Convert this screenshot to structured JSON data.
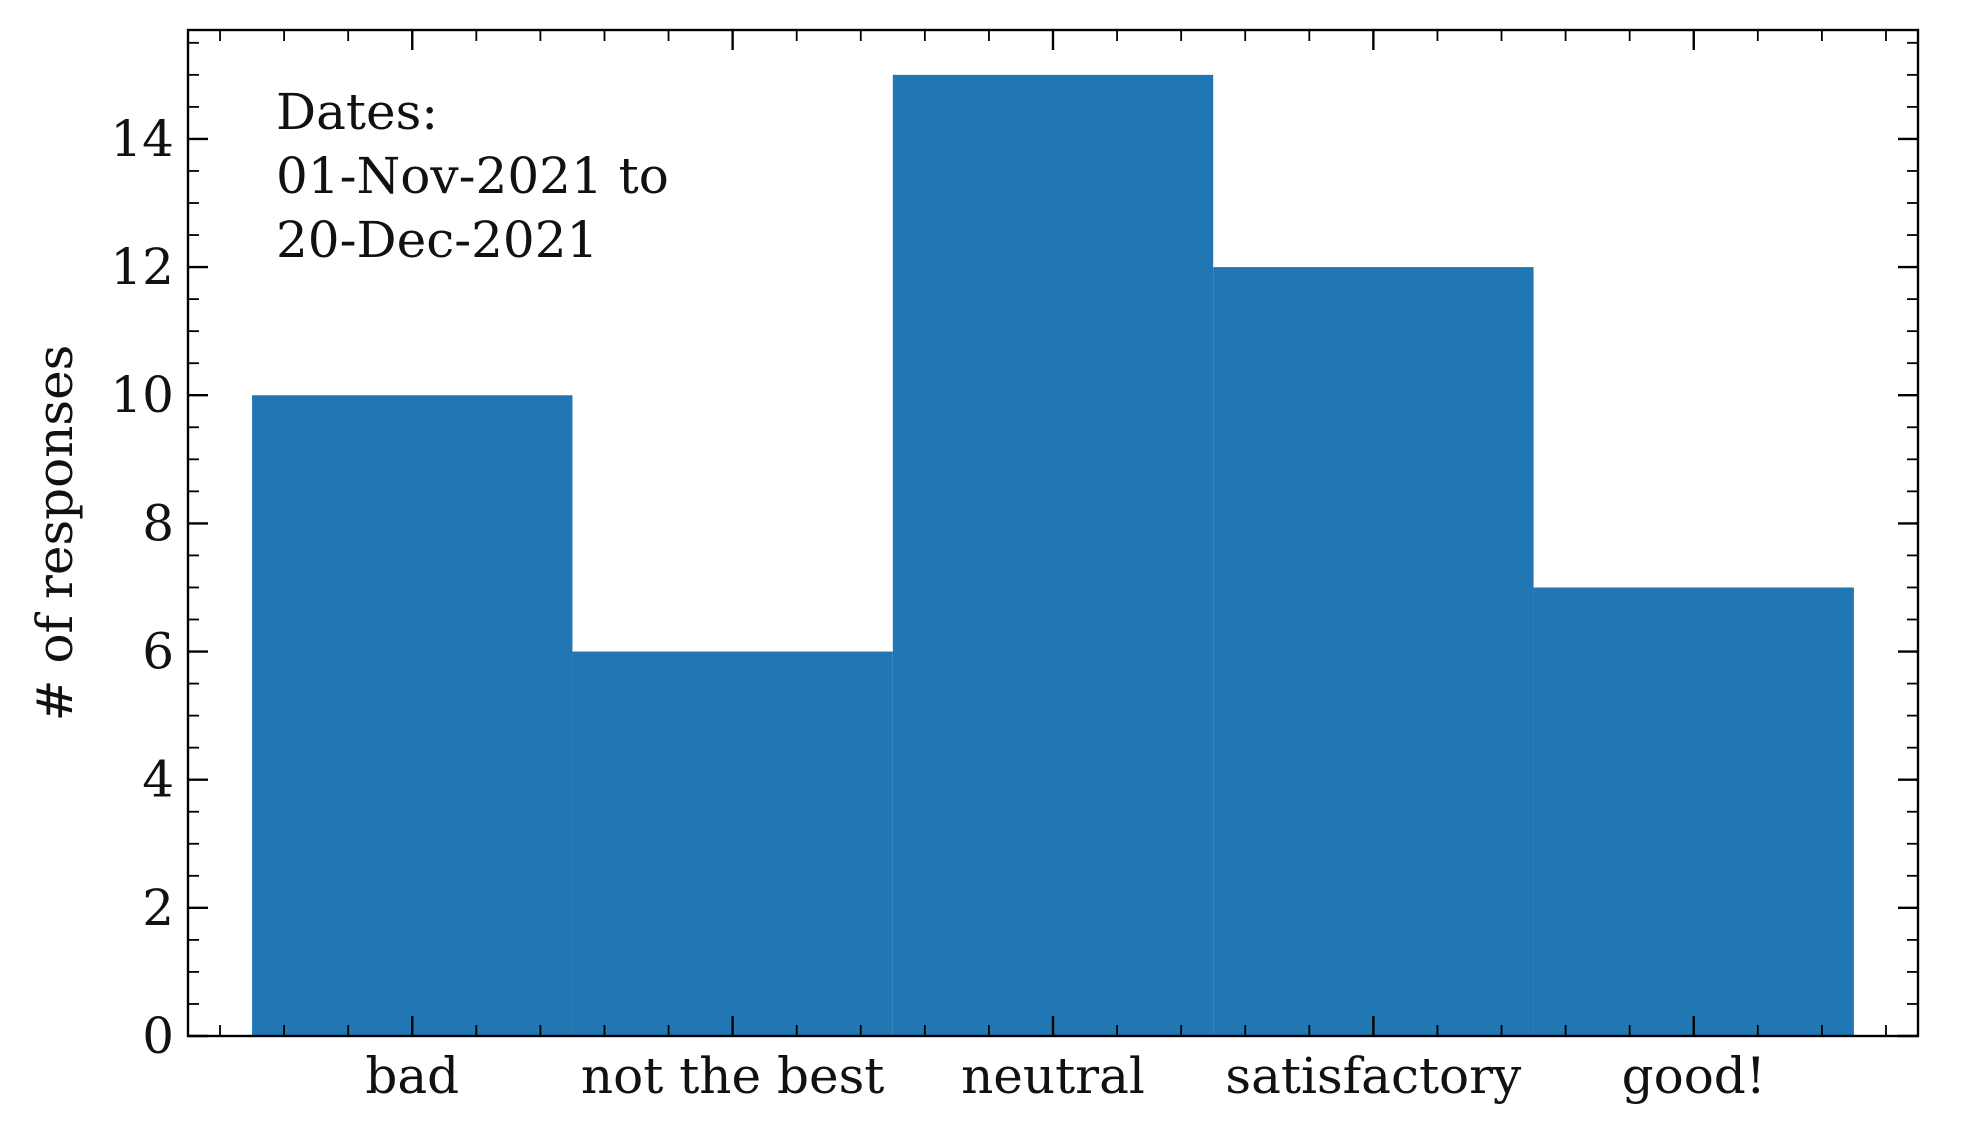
{
  "chart_data": {
    "type": "bar",
    "categories": [
      "bad",
      "not the best",
      "neutral",
      "satisfactory",
      "good!"
    ],
    "values": [
      10,
      6,
      15,
      12,
      7
    ],
    "bar_color": "#2077b4",
    "title": "",
    "xlabel": "",
    "ylabel": "# of responses",
    "ylim": [
      0,
      15.7
    ],
    "yticks": [
      0,
      2,
      4,
      6,
      8,
      10,
      12,
      14
    ],
    "grid": false,
    "annotation": [
      "Dates:",
      "01-Nov-2021 to",
      "20-Dec-2021"
    ]
  }
}
